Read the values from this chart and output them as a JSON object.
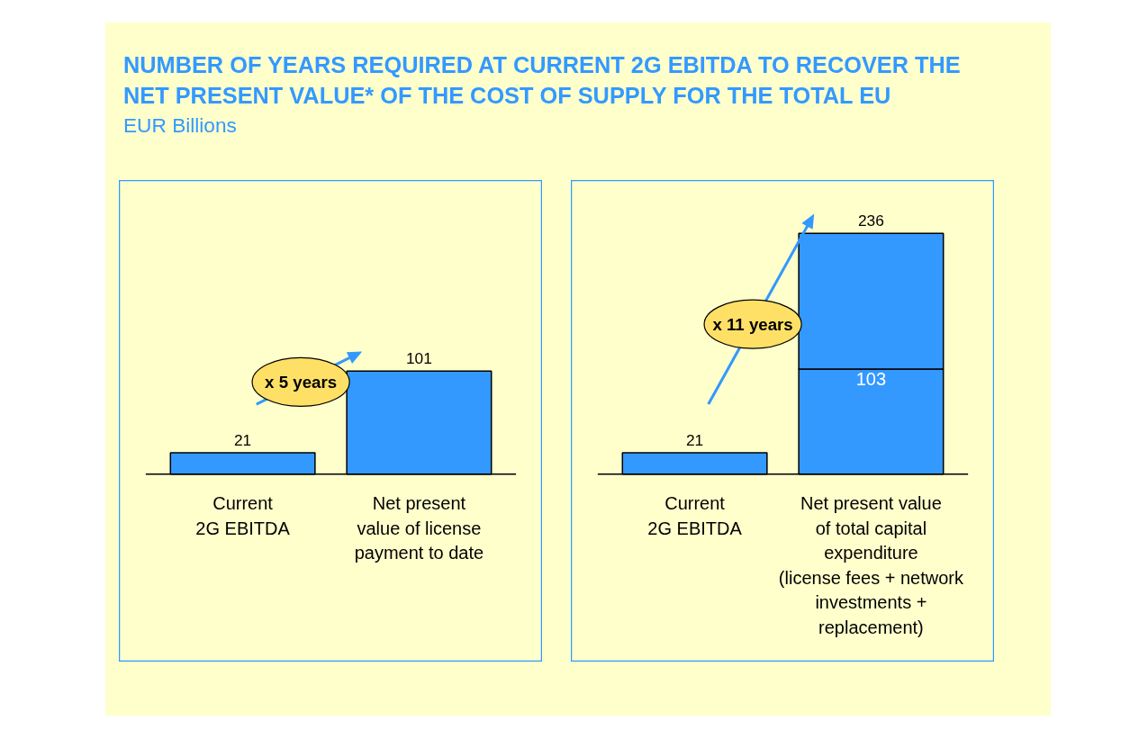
{
  "chart_data": [
    {
      "type": "bar",
      "title": "NUMBER OF YEARS REQUIRED AT CURRENT 2G EBITDA TO RECOVER THE NET PRESENT VALUE* OF THE COST OF SUPPLY FOR THE TOTAL EU",
      "subtitle": "EUR Billions",
      "categories": [
        "Current\n2G EBITDA",
        "Net present\nvalue of license\npayment to date"
      ],
      "values": [
        21,
        101
      ],
      "color": "#3399ff",
      "data_labels": true,
      "annotations": [
        "x 5 years"
      ]
    },
    {
      "type": "bar",
      "stacked": true,
      "categories": [
        "Current\n2G EBITDA",
        "Net present value\nof total capital\nexpenditure\n(license fees + network\ninvestments +\nreplacement)"
      ],
      "series": [
        {
          "color": "#3399ff",
          "values": [
            21,
            103
          ],
          "value_labels": [
            "21",
            "103"
          ]
        },
        {
          "color": "#3399ff",
          "values": [
            null,
            133
          ]
        }
      ],
      "totals": [
        null,
        "236"
      ],
      "annotations": [
        "x 11 years"
      ]
    }
  ]
}
